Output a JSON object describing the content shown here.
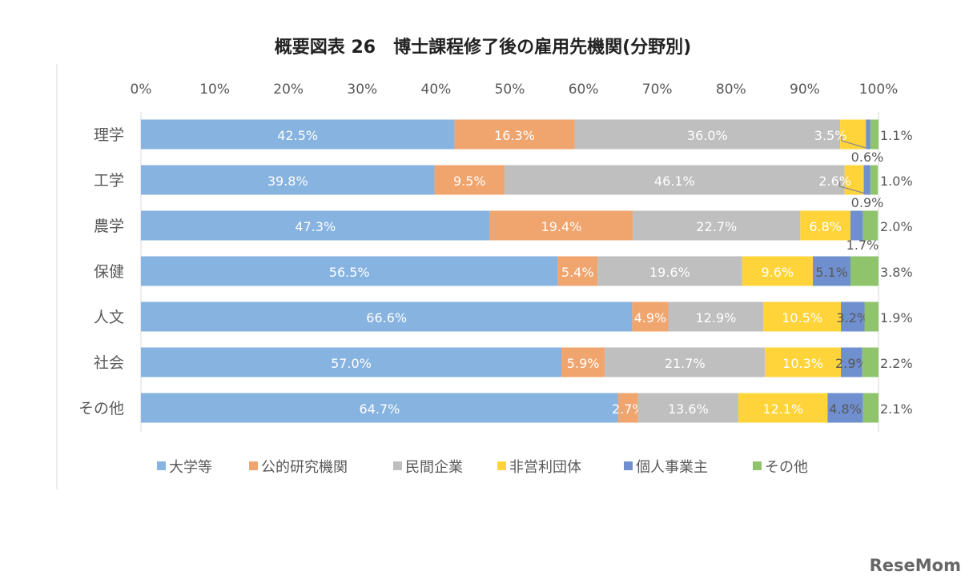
{
  "title": "概要図表 26　博士課程修了後の雇用先機関(分野別)",
  "watermark": "ReseMom",
  "colors": {
    "series": [
      "#87b3e0",
      "#f0a46e",
      "#bfbfbf",
      "#ffd43b",
      "#6f8fcf",
      "#8fc46d"
    ],
    "label_light": "#ffffff",
    "label_dark": "#595959",
    "axis": "#d9d9d9",
    "text": "#595959"
  },
  "chart_data": {
    "type": "bar",
    "orientation": "horizontal",
    "stacked": "percent",
    "xlim": [
      0,
      100
    ],
    "x_ticks": [
      "0%",
      "10%",
      "20%",
      "30%",
      "40%",
      "50%",
      "60%",
      "70%",
      "80%",
      "90%",
      "100%"
    ],
    "categories": [
      "理学",
      "工学",
      "農学",
      "保健",
      "人文",
      "社会",
      "その他"
    ],
    "series": [
      {
        "name": "大学等",
        "values": [
          42.5,
          39.8,
          47.3,
          56.5,
          66.6,
          57.0,
          64.7
        ],
        "labels": [
          "42.5%",
          "39.8%",
          "47.3%",
          "56.5%",
          "66.6%",
          "57.0%",
          "64.7%"
        ]
      },
      {
        "name": "公的研究機関",
        "values": [
          16.3,
          9.5,
          19.4,
          5.4,
          4.9,
          5.9,
          2.7
        ],
        "labels": [
          "16.3%",
          "9.5%",
          "19.4%",
          "5.4%",
          "4.9%",
          "5.9%",
          "2.7%"
        ]
      },
      {
        "name": "民間企業",
        "values": [
          36.0,
          46.1,
          22.7,
          19.6,
          12.9,
          21.7,
          13.6
        ],
        "labels": [
          "36.0%",
          "46.1%",
          "22.7%",
          "19.6%",
          "12.9%",
          "21.7%",
          "13.6%"
        ]
      },
      {
        "name": "非営利団体",
        "values": [
          3.5,
          2.6,
          6.8,
          9.6,
          10.5,
          10.3,
          12.1
        ],
        "labels": [
          "3.5%",
          "2.6%",
          "6.8%",
          "9.6%",
          "10.5%",
          "10.3%",
          "12.1%"
        ]
      },
      {
        "name": "個人事業主",
        "values": [
          0.6,
          0.9,
          1.7,
          5.1,
          3.2,
          2.9,
          4.8
        ],
        "labels": [
          "0.6%",
          "0.9%",
          "1.7%",
          "5.1%",
          "3.2%",
          "2.9%",
          "4.8%"
        ]
      },
      {
        "name": "その他",
        "values": [
          1.1,
          1.0,
          2.0,
          3.8,
          1.9,
          2.2,
          2.1
        ],
        "labels": [
          "1.1%",
          "1.0%",
          "2.0%",
          "3.8%",
          "1.9%",
          "2.2%",
          "2.1%"
        ]
      }
    ],
    "legend_position": "bottom"
  }
}
